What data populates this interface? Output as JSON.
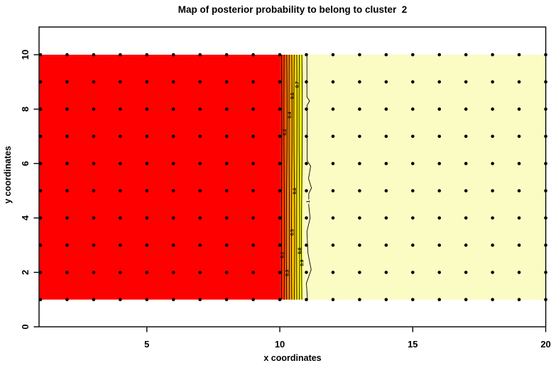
{
  "chart_data": {
    "type": "heatmap",
    "title": "Map of posterior probability to belong to cluster  2",
    "xlabel": "x coordinates",
    "ylabel": "y coordinates",
    "x_ticks": [
      5,
      10,
      15,
      20
    ],
    "y_ticks": [
      0,
      2,
      4,
      6,
      8,
      10
    ],
    "x_range": [
      1,
      20
    ],
    "y_range": [
      1,
      10
    ],
    "grid_points": {
      "x_min": 1,
      "x_max": 20,
      "x_step": 1,
      "y_min": 1,
      "y_max": 10,
      "y_step": 1,
      "marker": "filled-black-dot"
    },
    "field": {
      "low_value": 0,
      "high_value": 1,
      "low_color": "#FF0000",
      "high_color": "#FBFBC4",
      "transition_x_start": 10.0,
      "transition_x_end": 10.87,
      "gradient": [
        {
          "at": 0.0,
          "color": "#FF0000"
        },
        {
          "at": 0.18,
          "color": "#FF4900"
        },
        {
          "at": 0.42,
          "color": "#FF9200"
        },
        {
          "at": 0.68,
          "color": "#FFDB00"
        },
        {
          "at": 0.88,
          "color": "#FFFF00"
        },
        {
          "at": 1.0,
          "color": "#FFFF45"
        }
      ]
    },
    "contour_levels": [
      {
        "value": "0.1",
        "x": 10.07
      },
      {
        "value": "0.2",
        "x": 10.165
      },
      {
        "value": "0.3",
        "x": 10.26
      },
      {
        "value": "0.4",
        "x": 10.355
      },
      {
        "value": "0.5",
        "x": 10.45
      },
      {
        "value": "0.6",
        "x": 10.545
      },
      {
        "value": "0.7",
        "x": 10.64
      },
      {
        "value": "0.8",
        "x": 10.735
      },
      {
        "value": "0.9",
        "x": 10.83
      },
      {
        "value": "1",
        "x": 11.05,
        "wiggly": true
      }
    ],
    "wiggly_contour_points": [
      [
        11.02,
        10.0
      ],
      [
        11.02,
        8.45
      ],
      [
        11.12,
        8.3
      ],
      [
        11.03,
        8.15
      ],
      [
        11.03,
        6.1
      ],
      [
        11.16,
        5.9
      ],
      [
        11.08,
        5.45
      ],
      [
        11.19,
        5.1
      ],
      [
        11.09,
        4.9
      ],
      [
        11.09,
        4.45
      ],
      [
        11.14,
        4.0
      ],
      [
        11.02,
        3.5
      ],
      [
        11.06,
        2.7
      ],
      [
        11.18,
        2.1
      ],
      [
        11.0,
        1.6
      ],
      [
        11.04,
        1.0
      ]
    ],
    "contour_labels": [
      {
        "value": "0.7",
        "x": 10.64,
        "y": 8.9
      },
      {
        "value": "0.5",
        "x": 10.45,
        "y": 8.49
      },
      {
        "value": "0.4",
        "x": 10.355,
        "y": 7.78
      },
      {
        "value": "0.2",
        "x": 10.165,
        "y": 7.15
      },
      {
        "value": "0.6",
        "x": 10.545,
        "y": 4.99
      },
      {
        "value": "1",
        "x": 11.05,
        "y": 4.6
      },
      {
        "value": "0.5",
        "x": 10.45,
        "y": 3.47
      },
      {
        "value": "0.8",
        "x": 10.735,
        "y": 2.79
      },
      {
        "value": "0.1",
        "x": 10.07,
        "y": 2.64
      },
      {
        "value": "0.9",
        "x": 10.83,
        "y": 2.35
      },
      {
        "value": "0.3",
        "x": 10.26,
        "y": 1.98
      }
    ],
    "colors": {
      "dot": "#000000",
      "axis": "#000000",
      "background": "#FFFFFF"
    }
  }
}
